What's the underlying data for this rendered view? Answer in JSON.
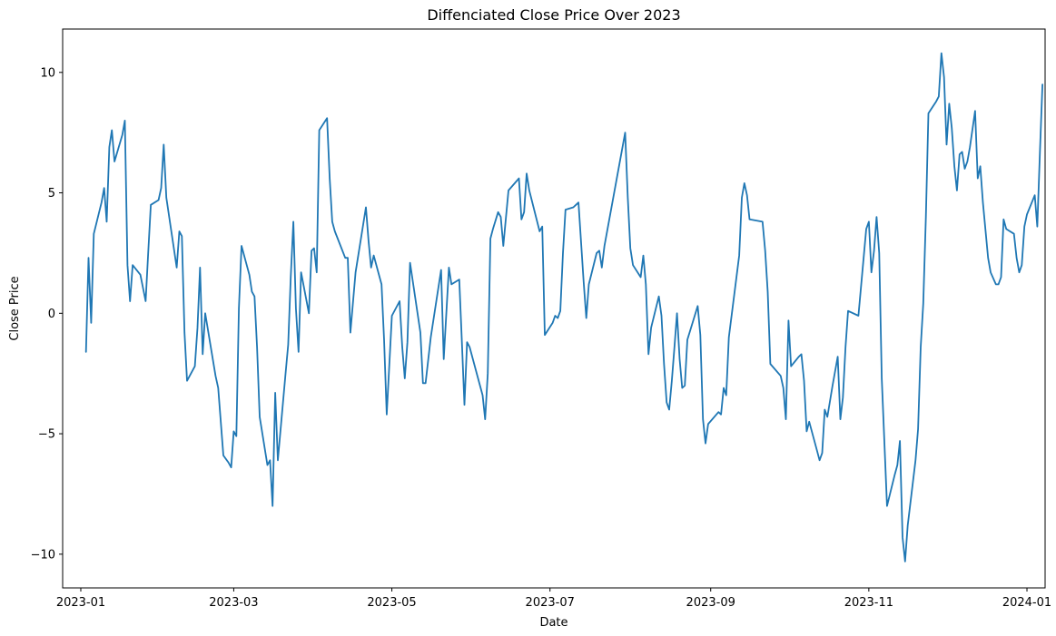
{
  "chart_data": {
    "type": "line",
    "title": "Diffenciated Close Price Over 2023",
    "xlabel": "Date",
    "ylabel": "Close Price",
    "xlim": [
      "2022-12-25",
      "2024-01-08"
    ],
    "ylim": [
      -11.4,
      11.8
    ],
    "x_ticks": [
      "2023-01",
      "2023-03",
      "2023-05",
      "2023-07",
      "2023-09",
      "2023-11",
      "2024-01"
    ],
    "y_ticks": [
      -10,
      -5,
      0,
      5,
      10
    ],
    "grid": false,
    "series": [
      {
        "color": "#1f77b4",
        "points": [
          [
            "2023-01-03",
            -1.6
          ],
          [
            "2023-01-04",
            2.3
          ],
          [
            "2023-01-05",
            -0.4
          ],
          [
            "2023-01-06",
            3.3
          ],
          [
            "2023-01-09",
            4.6
          ],
          [
            "2023-01-10",
            5.2
          ],
          [
            "2023-01-11",
            3.8
          ],
          [
            "2023-01-12",
            6.9
          ],
          [
            "2023-01-13",
            7.6
          ],
          [
            "2023-01-14",
            6.3
          ],
          [
            "2023-01-17",
            7.4
          ],
          [
            "2023-01-18",
            8.0
          ],
          [
            "2023-01-19",
            2.0
          ],
          [
            "2023-01-20",
            0.5
          ],
          [
            "2023-01-21",
            2.0
          ],
          [
            "2023-01-24",
            1.6
          ],
          [
            "2023-01-26",
            0.5
          ],
          [
            "2023-01-27",
            2.5
          ],
          [
            "2023-01-28",
            4.5
          ],
          [
            "2023-01-31",
            4.7
          ],
          [
            "2023-02-01",
            5.2
          ],
          [
            "2023-02-02",
            7.0
          ],
          [
            "2023-02-03",
            4.8
          ],
          [
            "2023-02-07",
            1.9
          ],
          [
            "2023-02-08",
            3.4
          ],
          [
            "2023-02-09",
            3.2
          ],
          [
            "2023-02-10",
            -0.8
          ],
          [
            "2023-02-11",
            -2.8
          ],
          [
            "2023-02-14",
            -2.2
          ],
          [
            "2023-02-15",
            -0.6
          ],
          [
            "2023-02-16",
            1.9
          ],
          [
            "2023-02-17",
            -1.7
          ],
          [
            "2023-02-18",
            0.0
          ],
          [
            "2023-02-22",
            -2.6
          ],
          [
            "2023-02-23",
            -3.1
          ],
          [
            "2023-02-25",
            -5.9
          ],
          [
            "2023-02-27",
            -6.2
          ],
          [
            "2023-02-28",
            -6.4
          ],
          [
            "2023-03-01",
            -4.9
          ],
          [
            "2023-03-02",
            -5.1
          ],
          [
            "2023-03-03",
            0.2
          ],
          [
            "2023-03-04",
            2.8
          ],
          [
            "2023-03-07",
            1.6
          ],
          [
            "2023-03-08",
            0.9
          ],
          [
            "2023-03-09",
            0.7
          ],
          [
            "2023-03-10",
            -1.4
          ],
          [
            "2023-03-11",
            -4.3
          ],
          [
            "2023-03-14",
            -6.3
          ],
          [
            "2023-03-15",
            -6.1
          ],
          [
            "2023-03-16",
            -8.0
          ],
          [
            "2023-03-17",
            -3.3
          ],
          [
            "2023-03-18",
            -6.1
          ],
          [
            "2023-03-21",
            -2.5
          ],
          [
            "2023-03-22",
            -1.3
          ],
          [
            "2023-03-23",
            1.5
          ],
          [
            "2023-03-24",
            3.8
          ],
          [
            "2023-03-25",
            0.2
          ],
          [
            "2023-03-26",
            -1.6
          ],
          [
            "2023-03-27",
            1.7
          ],
          [
            "2023-03-30",
            0.0
          ],
          [
            "2023-03-31",
            2.6
          ],
          [
            "2023-04-01",
            2.7
          ],
          [
            "2023-04-02",
            1.7
          ],
          [
            "2023-04-03",
            7.6
          ],
          [
            "2023-04-06",
            8.1
          ],
          [
            "2023-04-07",
            5.6
          ],
          [
            "2023-04-08",
            3.8
          ],
          [
            "2023-04-09",
            3.4
          ],
          [
            "2023-04-13",
            2.3
          ],
          [
            "2023-04-14",
            2.3
          ],
          [
            "2023-04-15",
            -0.8
          ],
          [
            "2023-04-17",
            1.7
          ],
          [
            "2023-04-21",
            4.4
          ],
          [
            "2023-04-22",
            3.0
          ],
          [
            "2023-04-23",
            1.9
          ],
          [
            "2023-04-24",
            2.4
          ],
          [
            "2023-04-27",
            1.2
          ],
          [
            "2023-04-28",
            -1.1
          ],
          [
            "2023-04-29",
            -4.2
          ],
          [
            "2023-05-01",
            -0.1
          ],
          [
            "2023-05-04",
            0.5
          ],
          [
            "2023-05-05",
            -1.4
          ],
          [
            "2023-05-06",
            -2.7
          ],
          [
            "2023-05-07",
            -1.2
          ],
          [
            "2023-05-08",
            2.1
          ],
          [
            "2023-05-12",
            -0.8
          ],
          [
            "2023-05-13",
            -2.9
          ],
          [
            "2023-05-14",
            -2.9
          ],
          [
            "2023-05-16",
            -1.0
          ],
          [
            "2023-05-20",
            1.8
          ],
          [
            "2023-05-21",
            -1.9
          ],
          [
            "2023-05-23",
            1.9
          ],
          [
            "2023-05-24",
            1.2
          ],
          [
            "2023-05-27",
            1.4
          ],
          [
            "2023-05-28",
            -1.2
          ],
          [
            "2023-05-29",
            -3.8
          ],
          [
            "2023-05-30",
            -1.2
          ],
          [
            "2023-05-31",
            -1.4
          ],
          [
            "2023-06-05",
            -3.4
          ],
          [
            "2023-06-06",
            -4.4
          ],
          [
            "2023-06-07",
            -2.5
          ],
          [
            "2023-06-08",
            3.1
          ],
          [
            "2023-06-09",
            3.5
          ],
          [
            "2023-06-11",
            4.2
          ],
          [
            "2023-06-12",
            4.0
          ],
          [
            "2023-06-13",
            2.8
          ],
          [
            "2023-06-15",
            5.1
          ],
          [
            "2023-06-19",
            5.6
          ],
          [
            "2023-06-20",
            3.9
          ],
          [
            "2023-06-21",
            4.2
          ],
          [
            "2023-06-22",
            5.8
          ],
          [
            "2023-06-23",
            5.1
          ],
          [
            "2023-06-27",
            3.4
          ],
          [
            "2023-06-28",
            3.6
          ],
          [
            "2023-06-29",
            -0.9
          ],
          [
            "2023-07-02",
            -0.4
          ],
          [
            "2023-07-03",
            -0.1
          ],
          [
            "2023-07-04",
            -0.2
          ],
          [
            "2023-07-05",
            0.1
          ],
          [
            "2023-07-06",
            2.5
          ],
          [
            "2023-07-07",
            4.3
          ],
          [
            "2023-07-10",
            4.4
          ],
          [
            "2023-07-11",
            4.5
          ],
          [
            "2023-07-12",
            4.6
          ],
          [
            "2023-07-14",
            1.3
          ],
          [
            "2023-07-15",
            -0.2
          ],
          [
            "2023-07-16",
            1.2
          ],
          [
            "2023-07-19",
            2.5
          ],
          [
            "2023-07-20",
            2.6
          ],
          [
            "2023-07-21",
            1.9
          ],
          [
            "2023-07-22",
            2.8
          ],
          [
            "2023-07-30",
            7.5
          ],
          [
            "2023-07-31",
            4.8
          ],
          [
            "2023-08-01",
            2.7
          ],
          [
            "2023-08-02",
            2.0
          ],
          [
            "2023-08-05",
            1.5
          ],
          [
            "2023-08-06",
            2.4
          ],
          [
            "2023-08-07",
            1.2
          ],
          [
            "2023-08-08",
            -1.7
          ],
          [
            "2023-08-09",
            -0.6
          ],
          [
            "2023-08-12",
            0.7
          ],
          [
            "2023-08-13",
            -0.1
          ],
          [
            "2023-08-14",
            -2.1
          ],
          [
            "2023-08-15",
            -3.7
          ],
          [
            "2023-08-16",
            -4.0
          ],
          [
            "2023-08-17",
            -2.8
          ],
          [
            "2023-08-18",
            -1.4
          ],
          [
            "2023-08-19",
            0.0
          ],
          [
            "2023-08-20",
            -1.9
          ],
          [
            "2023-08-21",
            -3.1
          ],
          [
            "2023-08-22",
            -3.0
          ],
          [
            "2023-08-23",
            -1.1
          ],
          [
            "2023-08-27",
            0.3
          ],
          [
            "2023-08-28",
            -0.9
          ],
          [
            "2023-08-29",
            -4.4
          ],
          [
            "2023-08-30",
            -5.4
          ],
          [
            "2023-08-31",
            -4.6
          ],
          [
            "2023-09-04",
            -4.1
          ],
          [
            "2023-09-05",
            -4.2
          ],
          [
            "2023-09-06",
            -3.1
          ],
          [
            "2023-09-07",
            -3.4
          ],
          [
            "2023-09-08",
            -1.0
          ],
          [
            "2023-09-12",
            2.4
          ],
          [
            "2023-09-13",
            4.8
          ],
          [
            "2023-09-14",
            5.4
          ],
          [
            "2023-09-15",
            4.9
          ],
          [
            "2023-09-16",
            3.9
          ],
          [
            "2023-09-21",
            3.8
          ],
          [
            "2023-09-22",
            2.6
          ],
          [
            "2023-09-23",
            0.9
          ],
          [
            "2023-09-24",
            -2.1
          ],
          [
            "2023-09-28",
            -2.6
          ],
          [
            "2023-09-29",
            -3.1
          ],
          [
            "2023-09-30",
            -4.4
          ],
          [
            "2023-10-01",
            -0.3
          ],
          [
            "2023-10-02",
            -2.2
          ],
          [
            "2023-10-05",
            -1.8
          ],
          [
            "2023-10-06",
            -1.7
          ],
          [
            "2023-10-07",
            -2.8
          ],
          [
            "2023-10-08",
            -4.9
          ],
          [
            "2023-10-09",
            -4.5
          ],
          [
            "2023-10-12",
            -5.7
          ],
          [
            "2023-10-13",
            -6.1
          ],
          [
            "2023-10-14",
            -5.8
          ],
          [
            "2023-10-15",
            -4.0
          ],
          [
            "2023-10-16",
            -4.3
          ],
          [
            "2023-10-18",
            -3.0
          ],
          [
            "2023-10-20",
            -1.8
          ],
          [
            "2023-10-21",
            -4.4
          ],
          [
            "2023-10-22",
            -3.5
          ],
          [
            "2023-10-23",
            -1.4
          ],
          [
            "2023-10-24",
            0.1
          ],
          [
            "2023-10-28",
            -0.1
          ],
          [
            "2023-10-31",
            3.5
          ],
          [
            "2023-11-01",
            3.8
          ],
          [
            "2023-11-02",
            1.7
          ],
          [
            "2023-11-03",
            2.6
          ],
          [
            "2023-11-04",
            4.0
          ],
          [
            "2023-11-05",
            2.5
          ],
          [
            "2023-11-06",
            -2.7
          ],
          [
            "2023-11-08",
            -8.0
          ],
          [
            "2023-11-11",
            -6.7
          ],
          [
            "2023-11-12",
            -6.3
          ],
          [
            "2023-11-13",
            -5.3
          ],
          [
            "2023-11-14",
            -9.3
          ],
          [
            "2023-11-15",
            -10.3
          ],
          [
            "2023-11-16",
            -8.8
          ],
          [
            "2023-11-19",
            -6.1
          ],
          [
            "2023-11-20",
            -4.8
          ],
          [
            "2023-11-21",
            -1.4
          ],
          [
            "2023-11-22",
            0.4
          ],
          [
            "2023-11-23",
            4.0
          ],
          [
            "2023-11-24",
            8.3
          ],
          [
            "2023-11-27",
            8.8
          ],
          [
            "2023-11-28",
            9.0
          ],
          [
            "2023-11-29",
            10.8
          ],
          [
            "2023-11-30",
            9.8
          ],
          [
            "2023-12-01",
            7.0
          ],
          [
            "2023-12-02",
            8.7
          ],
          [
            "2023-12-03",
            7.7
          ],
          [
            "2023-12-04",
            6.1
          ],
          [
            "2023-12-05",
            5.1
          ],
          [
            "2023-12-06",
            6.6
          ],
          [
            "2023-12-07",
            6.7
          ],
          [
            "2023-12-08",
            6.0
          ],
          [
            "2023-12-09",
            6.3
          ],
          [
            "2023-12-10",
            6.9
          ],
          [
            "2023-12-12",
            8.4
          ],
          [
            "2023-12-13",
            5.6
          ],
          [
            "2023-12-14",
            6.1
          ],
          [
            "2023-12-15",
            4.6
          ],
          [
            "2023-12-17",
            2.3
          ],
          [
            "2023-12-18",
            1.7
          ],
          [
            "2023-12-20",
            1.2
          ],
          [
            "2023-12-21",
            1.2
          ],
          [
            "2023-12-22",
            1.5
          ],
          [
            "2023-12-23",
            3.9
          ],
          [
            "2023-12-24",
            3.5
          ],
          [
            "2023-12-27",
            3.3
          ],
          [
            "2023-12-28",
            2.3
          ],
          [
            "2023-12-29",
            1.7
          ],
          [
            "2023-12-30",
            2.0
          ],
          [
            "2023-12-31",
            3.6
          ],
          [
            "2024-01-01",
            4.1
          ],
          [
            "2024-01-04",
            4.9
          ],
          [
            "2024-01-05",
            3.6
          ],
          [
            "2024-01-06",
            6.7
          ],
          [
            "2024-01-07",
            9.5
          ]
        ]
      }
    ]
  }
}
